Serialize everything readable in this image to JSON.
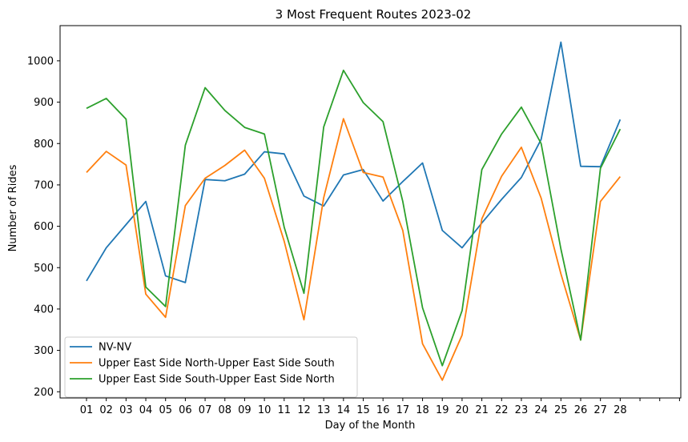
{
  "chart_data": {
    "type": "line",
    "title": "3 Most Frequent Routes 2023-02",
    "xlabel": "Day of the Month",
    "ylabel": "Number of Rides",
    "categories": [
      "01",
      "02",
      "03",
      "04",
      "05",
      "06",
      "07",
      "08",
      "09",
      "10",
      "11",
      "12",
      "13",
      "14",
      "15",
      "16",
      "17",
      "18",
      "19",
      "20",
      "21",
      "22",
      "23",
      "24",
      "25",
      "26",
      "27",
      "28"
    ],
    "extra_ticks": 3,
    "ylim": [
      185,
      1085
    ],
    "yticks": [
      200,
      300,
      400,
      500,
      600,
      700,
      800,
      900,
      1000
    ],
    "grid": false,
    "legend_position": "lower-left",
    "series": [
      {
        "name": "NV-NV",
        "color": "#1f77b4",
        "values": [
          468,
          548,
          604,
          660,
          480,
          464,
          713,
          710,
          726,
          780,
          775,
          673,
          649,
          724,
          737,
          661,
          708,
          753,
          590,
          548,
          608,
          665,
          718,
          810,
          1045,
          745,
          744,
          858
        ]
      },
      {
        "name": "Upper East Side North-Upper East Side South",
        "color": "#ff7f0e",
        "values": [
          730,
          781,
          748,
          436,
          380,
          650,
          716,
          747,
          784,
          716,
          564,
          374,
          669,
          860,
          730,
          719,
          590,
          316,
          228,
          337,
          618,
          721,
          791,
          668,
          485,
          325,
          660,
          720
        ]
      },
      {
        "name": "Upper East Side South-Upper East Side North",
        "color": "#2ca02c",
        "values": [
          885,
          909,
          859,
          453,
          406,
          796,
          935,
          880,
          839,
          823,
          598,
          438,
          840,
          977,
          899,
          853,
          660,
          403,
          263,
          396,
          737,
          823,
          888,
          800,
          545,
          325,
          740,
          835
        ]
      }
    ]
  }
}
